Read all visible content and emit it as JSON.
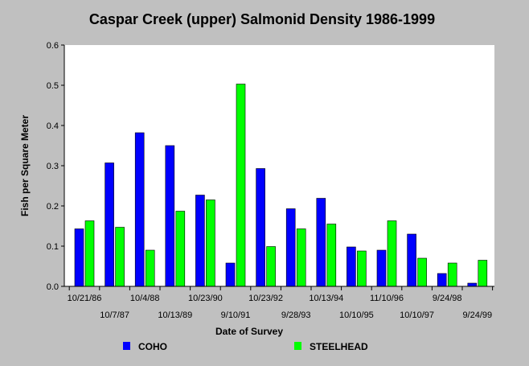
{
  "chart_data": {
    "type": "bar",
    "title": "Caspar Creek (upper) Salmonid Density 1986-1999",
    "xlabel": "Date of Survey",
    "ylabel": "Fish per Square Meter",
    "ylim": [
      0,
      0.6
    ],
    "yticks": [
      "0.0",
      "0.1",
      "0.2",
      "0.3",
      "0.4",
      "0.5",
      "0.6"
    ],
    "categories": [
      "10/21/86",
      "10/7/87",
      "10/4/88",
      "10/13/89",
      "10/23/90",
      "9/10/91",
      "10/23/92",
      "9/28/93",
      "10/13/94",
      "10/10/95",
      "11/10/96",
      "10/10/97",
      "9/24/98",
      "9/24/99"
    ],
    "series": [
      {
        "name": "COHO",
        "color": "#0000ff",
        "values": [
          0.143,
          0.307,
          0.382,
          0.35,
          0.227,
          0.058,
          0.293,
          0.193,
          0.219,
          0.098,
          0.09,
          0.13,
          0.032,
          0.008
        ]
      },
      {
        "name": "STEELHEAD",
        "color": "#00ff00",
        "values": [
          0.163,
          0.147,
          0.09,
          0.187,
          0.215,
          0.503,
          0.099,
          0.143,
          0.155,
          0.088,
          0.163,
          0.07,
          0.058,
          0.065
        ]
      }
    ],
    "grid": false,
    "legend": "bottom"
  }
}
